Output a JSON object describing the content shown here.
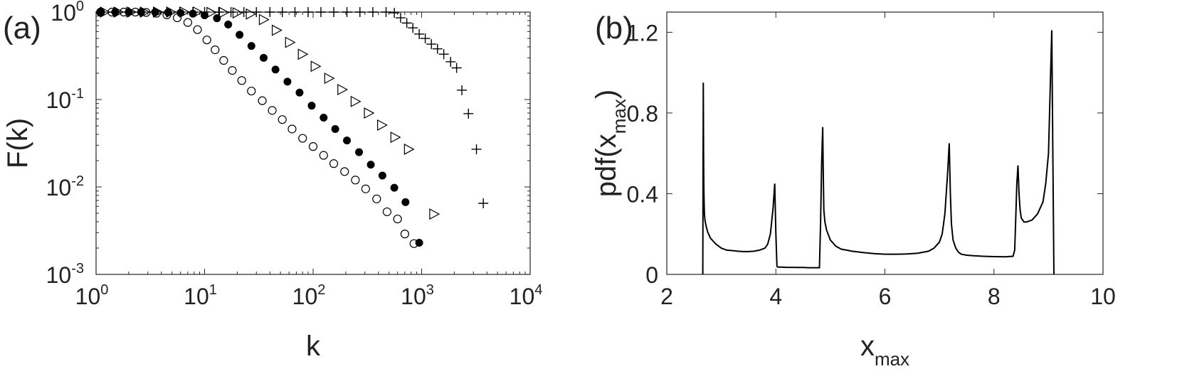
{
  "chart_data": [
    {
      "panel_label": "(a)",
      "type": "scatter",
      "xscale": "log",
      "yscale": "log",
      "xlabel": "k",
      "ylabel": "F(k)",
      "xlim": [
        1,
        10000
      ],
      "ylim": [
        0.001,
        1
      ],
      "x_ticks": [
        {
          "value": 1,
          "base": "10",
          "exp": "0"
        },
        {
          "value": 10,
          "base": "10",
          "exp": "1"
        },
        {
          "value": 100,
          "base": "10",
          "exp": "2"
        },
        {
          "value": 1000,
          "base": "10",
          "exp": "3"
        },
        {
          "value": 10000,
          "base": "10",
          "exp": "4"
        }
      ],
      "y_ticks": [
        {
          "value": 1,
          "base": "10",
          "exp": "0"
        },
        {
          "value": 0.1,
          "base": "10",
          "exp": "-1"
        },
        {
          "value": 0.01,
          "base": "10",
          "exp": "-2"
        },
        {
          "value": 0.001,
          "base": "10",
          "exp": "-3"
        }
      ],
      "series": [
        {
          "name": "open circles",
          "marker": "open-circle",
          "x": [
            1.1,
            1.4,
            1.8,
            2.3,
            2.9,
            3.6,
            4.5,
            5.6,
            7.0,
            8.6,
            10.5,
            12.5,
            15,
            18,
            22,
            27,
            34,
            42,
            52,
            64,
            80,
            100,
            125,
            155,
            195,
            245,
            305,
            385,
            480,
            600,
            700,
            850
          ],
          "y": [
            1.0,
            1.0,
            1.0,
            1.0,
            0.99,
            0.97,
            0.93,
            0.86,
            0.76,
            0.63,
            0.48,
            0.37,
            0.28,
            0.215,
            0.165,
            0.125,
            0.097,
            0.075,
            0.059,
            0.046,
            0.036,
            0.029,
            0.023,
            0.0185,
            0.015,
            0.012,
            0.0095,
            0.0073,
            0.0052,
            0.0043,
            0.0029,
            0.00225
          ]
        },
        {
          "name": "filled circles",
          "marker": "filled-circle",
          "x": [
            1.1,
            1.5,
            2.0,
            2.6,
            3.5,
            4.6,
            6.0,
            7.8,
            10,
            13,
            16.5,
            21,
            27,
            35,
            45,
            58,
            75,
            97,
            125,
            160,
            205,
            265,
            340,
            435,
            560,
            710,
            950
          ],
          "y": [
            1.0,
            1.0,
            1.0,
            1.0,
            1.0,
            0.99,
            0.98,
            0.96,
            0.92,
            0.85,
            0.72,
            0.55,
            0.41,
            0.3,
            0.22,
            0.16,
            0.12,
            0.085,
            0.062,
            0.046,
            0.034,
            0.025,
            0.018,
            0.0135,
            0.0098,
            0.0067,
            0.0023
          ]
        },
        {
          "name": "open triangles",
          "marker": "open-triangle-right",
          "x": [
            1.2,
            1.6,
            2.1,
            2.8,
            3.7,
            4.9,
            6.5,
            8.6,
            11.5,
            15,
            20,
            26.5,
            35,
            46,
            61,
            80,
            105,
            140,
            185,
            245,
            325,
            430,
            570,
            760,
            1300
          ],
          "y": [
            1.0,
            1.0,
            1.0,
            1.0,
            1.0,
            1.0,
            1.0,
            1.0,
            0.99,
            0.99,
            0.98,
            0.95,
            0.82,
            0.62,
            0.45,
            0.33,
            0.24,
            0.175,
            0.13,
            0.095,
            0.07,
            0.051,
            0.037,
            0.027,
            0.0049
          ]
        },
        {
          "name": "plus",
          "marker": "plus",
          "x": [
            1.1,
            1.5,
            2.0,
            2.6,
            3.4,
            4.5,
            5.9,
            7.8,
            10,
            13.5,
            17.5,
            23,
            30,
            40,
            52,
            68,
            90,
            118,
            155,
            205,
            270,
            355,
            470,
            560,
            640,
            730,
            830,
            950,
            1080,
            1230,
            1400,
            1600,
            1850,
            2100,
            2350,
            2700,
            3200,
            3700
          ],
          "y": [
            1.0,
            1.0,
            1.0,
            1.0,
            1.0,
            1.0,
            1.0,
            1.0,
            1.0,
            1.0,
            1.0,
            1.0,
            1.0,
            1.0,
            1.0,
            1.0,
            1.0,
            1.0,
            1.0,
            1.0,
            1.0,
            1.0,
            1.0,
            0.98,
            0.86,
            0.75,
            0.66,
            0.56,
            0.5,
            0.43,
            0.38,
            0.33,
            0.27,
            0.23,
            0.128,
            0.069,
            0.027,
            0.0065
          ]
        }
      ]
    },
    {
      "panel_label": "(b)",
      "type": "line",
      "xlabel": "x",
      "xlabel_sub": "max",
      "ylabel": "pdf(x",
      "ylabel_sub": "max",
      "ylabel_close": ")",
      "xlim": [
        2,
        10
      ],
      "ylim": [
        0,
        1.3
      ],
      "x_ticks": [
        "2",
        "4",
        "6",
        "8",
        "10"
      ],
      "y_ticks": [
        "0",
        "0.4",
        "0.8",
        "1.2"
      ],
      "series": [
        {
          "name": "pdf",
          "x": [
            2.66,
            2.67,
            2.675,
            2.68,
            2.685,
            2.69,
            2.7,
            2.72,
            2.75,
            2.8,
            2.9,
            3.0,
            3.1,
            3.2,
            3.3,
            3.4,
            3.5,
            3.6,
            3.7,
            3.8,
            3.85,
            3.9,
            3.95,
            3.98,
            4.0,
            4.02,
            4.04,
            4.1,
            4.2,
            4.3,
            4.4,
            4.5,
            4.6,
            4.7,
            4.8,
            4.82,
            4.84,
            4.86,
            4.87,
            4.88,
            4.9,
            4.93,
            5.0,
            5.1,
            5.2,
            5.4,
            5.6,
            5.8,
            6.0,
            6.2,
            6.4,
            6.6,
            6.8,
            6.9,
            7.0,
            7.05,
            7.1,
            7.15,
            7.18,
            7.2,
            7.22,
            7.25,
            7.3,
            7.35,
            7.4,
            7.5,
            7.6,
            7.8,
            8.0,
            8.2,
            8.35,
            8.38,
            8.4,
            8.42,
            8.44,
            8.46,
            8.48,
            8.5,
            8.55,
            8.6,
            8.7,
            8.8,
            8.9,
            8.95,
            9.0,
            9.02,
            9.04,
            9.06,
            9.08,
            9.1
          ],
          "y": [
            0.0,
            0.95,
            0.6,
            0.42,
            0.35,
            0.3,
            0.27,
            0.24,
            0.21,
            0.18,
            0.15,
            0.13,
            0.12,
            0.118,
            0.115,
            0.113,
            0.113,
            0.115,
            0.12,
            0.13,
            0.15,
            0.2,
            0.33,
            0.45,
            0.2,
            0.04,
            0.036,
            0.036,
            0.035,
            0.035,
            0.034,
            0.034,
            0.033,
            0.033,
            0.033,
            0.25,
            0.55,
            0.73,
            0.5,
            0.32,
            0.26,
            0.22,
            0.17,
            0.14,
            0.125,
            0.115,
            0.108,
            0.103,
            0.1,
            0.1,
            0.101,
            0.105,
            0.115,
            0.13,
            0.16,
            0.2,
            0.3,
            0.5,
            0.65,
            0.4,
            0.25,
            0.17,
            0.13,
            0.11,
            0.1,
            0.095,
            0.093,
            0.09,
            0.088,
            0.087,
            0.09,
            0.12,
            0.28,
            0.45,
            0.54,
            0.4,
            0.32,
            0.28,
            0.26,
            0.26,
            0.27,
            0.3,
            0.36,
            0.45,
            0.6,
            0.8,
            1.0,
            1.21,
            0.6,
            0.0
          ]
        }
      ]
    }
  ]
}
